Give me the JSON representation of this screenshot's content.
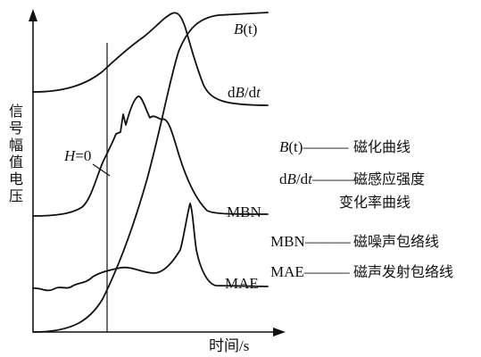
{
  "axes": {
    "y_label": "信号幅值电压",
    "x_label": "时间/s"
  },
  "marker": {
    "label_italic": "H",
    "label_rest": "=0"
  },
  "curves": {
    "bt": {
      "italic": "B",
      "rest": "(t)"
    },
    "dbdt": {
      "part1": "d",
      "italic1": "B",
      "part2": "/d",
      "italic2": "t"
    },
    "mbn": {
      "label": "MBN"
    },
    "mae": {
      "label": "MAE"
    }
  },
  "legend": [
    {
      "key_html_parts": [
        "B",
        "(t)"
      ],
      "dash": "———",
      "desc": "磁化曲线"
    },
    {
      "key_parts": [
        "d",
        "B",
        "/d",
        "t"
      ],
      "dash": "———",
      "desc_line1": "磁感应强度",
      "desc_line2": "变化率曲线"
    },
    {
      "key": "MBN",
      "dash": "———",
      "desc": "磁噪声包络线"
    },
    {
      "key": "MAE",
      "dash": "———",
      "desc": "磁声发射包络线"
    }
  ]
}
